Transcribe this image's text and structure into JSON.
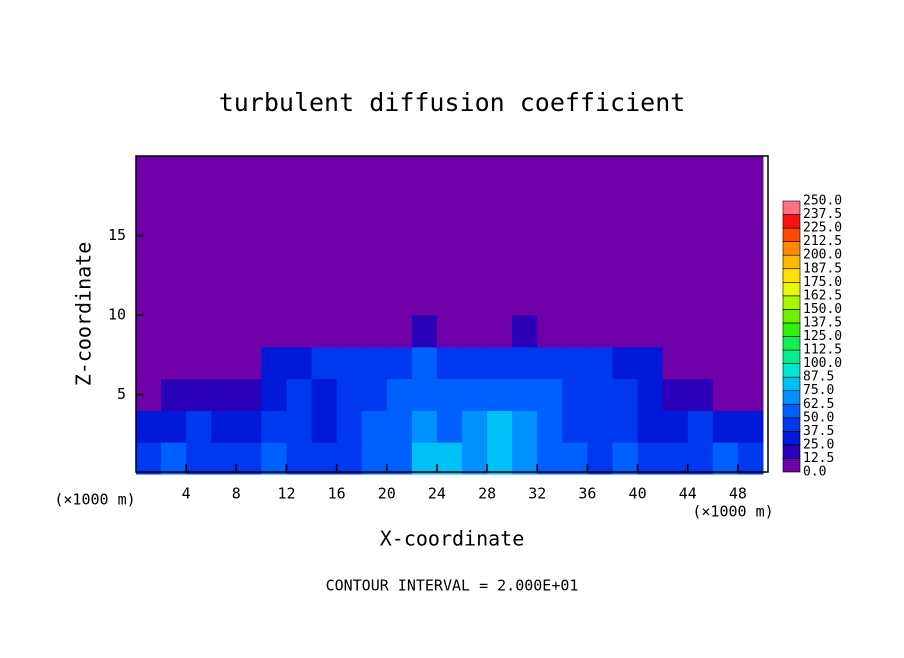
{
  "chart_data": {
    "type": "contour",
    "title": "turbulent diffusion coefficient",
    "x_label": "X-coordinate",
    "y_label": "Z-coordinate",
    "x_unit": "(×1000 m)",
    "y_unit": "(×1000 m)",
    "footnote": "CONTOUR INTERVAL = 2.000E+01",
    "xlim": [
      0,
      50.4
    ],
    "ylim": [
      0,
      20
    ],
    "xticks": [
      4,
      8,
      12,
      16,
      20,
      24,
      28,
      32,
      36,
      40,
      44,
      48
    ],
    "yticks": [
      5,
      10,
      15
    ],
    "x": [
      1,
      3,
      5,
      7,
      9,
      11,
      13,
      15,
      17,
      19,
      21,
      23,
      25,
      27,
      29,
      31,
      33,
      35,
      37,
      39,
      41,
      43,
      45,
      47,
      49
    ],
    "y": [
      1,
      3,
      5,
      7,
      9,
      11,
      13,
      15,
      17,
      19
    ],
    "values": [
      [
        45,
        50,
        45,
        40,
        45,
        50,
        45,
        40,
        45,
        55,
        60,
        75,
        85,
        70,
        80,
        70,
        55,
        50,
        45,
        50,
        45,
        40,
        45,
        50,
        45
      ],
      [
        30,
        35,
        40,
        30,
        35,
        45,
        40,
        35,
        40,
        50,
        55,
        65,
        60,
        70,
        75,
        65,
        55,
        45,
        40,
        45,
        35,
        30,
        40,
        35,
        30
      ],
      [
        12,
        15,
        20,
        15,
        20,
        35,
        40,
        35,
        40,
        45,
        50,
        55,
        50,
        60,
        55,
        60,
        50,
        45,
        40,
        40,
        30,
        20,
        15,
        12,
        10
      ],
      [
        5,
        5,
        5,
        8,
        10,
        30,
        35,
        38,
        40,
        40,
        45,
        50,
        45,
        40,
        45,
        45,
        45,
        40,
        38,
        35,
        30,
        10,
        5,
        5,
        5
      ],
      [
        3,
        3,
        3,
        3,
        3,
        3,
        3,
        3,
        3,
        3,
        10,
        15,
        5,
        5,
        10,
        15,
        5,
        3,
        3,
        3,
        3,
        3,
        3,
        3,
        3
      ],
      [
        0,
        0,
        0,
        0,
        0,
        0,
        0,
        0,
        0,
        0,
        0,
        0,
        0,
        0,
        0,
        0,
        0,
        0,
        0,
        0,
        0,
        0,
        0,
        0,
        0
      ],
      [
        0,
        0,
        0,
        0,
        0,
        0,
        0,
        0,
        0,
        0,
        0,
        0,
        0,
        0,
        0,
        0,
        0,
        0,
        0,
        0,
        0,
        0,
        0,
        0,
        0
      ],
      [
        0,
        0,
        0,
        0,
        0,
        0,
        0,
        0,
        0,
        0,
        0,
        0,
        0,
        0,
        0,
        0,
        0,
        0,
        0,
        0,
        0,
        0,
        0,
        0,
        0
      ],
      [
        0,
        0,
        0,
        0,
        0,
        0,
        0,
        0,
        0,
        0,
        0,
        0,
        0,
        0,
        0,
        0,
        0,
        0,
        0,
        0,
        0,
        0,
        0,
        0,
        0
      ],
      [
        0,
        0,
        0,
        0,
        0,
        0,
        0,
        0,
        0,
        0,
        0,
        0,
        0,
        0,
        0,
        0,
        0,
        0,
        0,
        0,
        0,
        0,
        0,
        0,
        0
      ]
    ],
    "colorbar": {
      "levels": [
        {
          "value": 0,
          "label": "0.0"
        },
        {
          "value": 12.5,
          "label": "12.5"
        },
        {
          "value": 25,
          "label": "25.0"
        },
        {
          "value": 37.5,
          "label": "37.5"
        },
        {
          "value": 50,
          "label": "50.0"
        },
        {
          "value": 62.5,
          "label": "62.5"
        },
        {
          "value": 75,
          "label": "75.0"
        },
        {
          "value": 87.5,
          "label": "87.5"
        },
        {
          "value": 100,
          "label": "100.0"
        },
        {
          "value": 112.5,
          "label": "112.5"
        },
        {
          "value": 125,
          "label": "125.0"
        },
        {
          "value": 137.5,
          "label": "137.5"
        },
        {
          "value": 150,
          "label": "150.0"
        },
        {
          "value": 162.5,
          "label": "162.5"
        },
        {
          "value": 175,
          "label": "175.0"
        },
        {
          "value": 187.5,
          "label": "187.5"
        },
        {
          "value": 200,
          "label": "200.0"
        },
        {
          "value": 212.5,
          "label": "212.5"
        },
        {
          "value": 225,
          "label": "225.0"
        },
        {
          "value": 237.5,
          "label": "237.5"
        },
        {
          "value": 250,
          "label": "250.0"
        }
      ],
      "colors": [
        "#7000a8",
        "#2a00b8",
        "#0018d8",
        "#0038f0",
        "#0060ff",
        "#0090ff",
        "#00c0f8",
        "#00e8d0",
        "#00f090",
        "#10f050",
        "#30f010",
        "#70f000",
        "#a8f800",
        "#e8f800",
        "#ffe000",
        "#ffb800",
        "#ff8800",
        "#ff4800",
        "#ff1010",
        "#ff7080"
      ]
    }
  }
}
